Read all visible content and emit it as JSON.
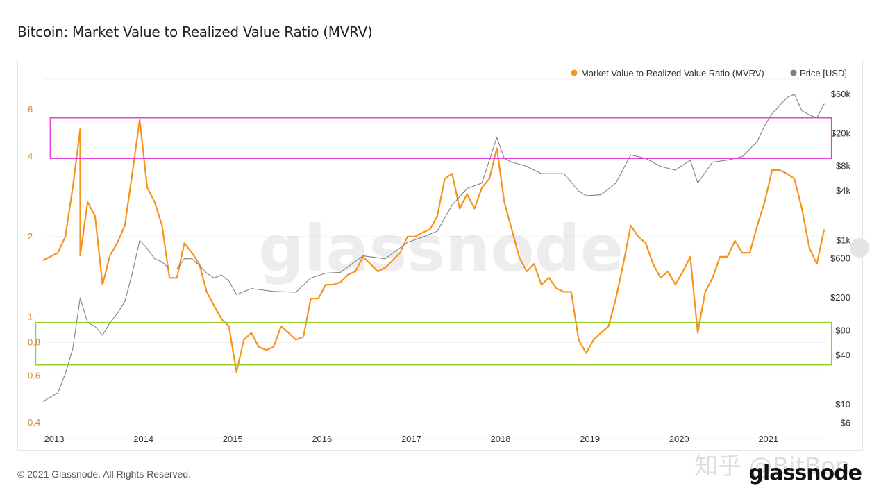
{
  "header": {
    "title": "Bitcoin: Market Value to Realized Value Ratio (MVRV)"
  },
  "footer": {
    "copyright": "© 2021 Glassnode. All Rights Reserved.",
    "logo": "glassnode",
    "watermark": "glassnode",
    "repost_watermark": "知乎 @BitBon"
  },
  "colors": {
    "mvrv": "#f7931a",
    "price": "#808080",
    "top_box": "#e83ee0",
    "bottom_box": "#9acd32"
  },
  "chart_data": {
    "type": "line",
    "title": "Bitcoin: Market Value to Realized Value Ratio (MVRV)",
    "legend": {
      "placement": "top-right",
      "entries": [
        "Market Value to Realized Value Ratio (MVRV)",
        "Price [USD]"
      ]
    },
    "x_ticks": [
      "2013",
      "2014",
      "2015",
      "2016",
      "2017",
      "2018",
      "2019",
      "2020",
      "2021"
    ],
    "y_left": {
      "scale": "log",
      "ticks": [
        "6",
        "4",
        "2",
        "1",
        "0.8",
        "0.6",
        "0.4"
      ],
      "tick_values": [
        6,
        4,
        2,
        1,
        0.8,
        0.6,
        0.4
      ]
    },
    "y_right": {
      "scale": "log",
      "ticks": [
        "$60k",
        "$20k",
        "$8k",
        "$4k",
        "$1k",
        "$600",
        "$200",
        "$80",
        "$40",
        "$10",
        "$6"
      ],
      "tick_values": [
        60000,
        20000,
        8000,
        4000,
        1000,
        600,
        200,
        80,
        40,
        10,
        6
      ]
    },
    "series": [
      {
        "name": "Market Value to Realized Value Ratio (MVRV)",
        "axis": "left",
        "points": [
          [
            "2012-11",
            1.63
          ],
          [
            "2013-01",
            1.74
          ],
          [
            "2013-02",
            2.0
          ],
          [
            "2013-03",
            3.06
          ],
          [
            "2013-04",
            5.07
          ],
          [
            "2013-04",
            1.7
          ],
          [
            "2013-05",
            2.7
          ],
          [
            "2013-06",
            2.39
          ],
          [
            "2013-07",
            1.32
          ],
          [
            "2013-08",
            1.7
          ],
          [
            "2013-09",
            1.9
          ],
          [
            "2013-10",
            2.2
          ],
          [
            "2013-11",
            3.45
          ],
          [
            "2013-12",
            5.5
          ],
          [
            "2014-01",
            3.06
          ],
          [
            "2014-02",
            2.7
          ],
          [
            "2014-03",
            2.2
          ],
          [
            "2014-04",
            1.4
          ],
          [
            "2014-05",
            1.4
          ],
          [
            "2014-06",
            1.89
          ],
          [
            "2014-07",
            1.74
          ],
          [
            "2014-08",
            1.58
          ],
          [
            "2014-09",
            1.24
          ],
          [
            "2014-10",
            1.1
          ],
          [
            "2014-11",
            0.98
          ],
          [
            "2014-12",
            0.92
          ],
          [
            "2015-01",
            0.62
          ],
          [
            "2015-02",
            0.82
          ],
          [
            "2015-03",
            0.87
          ],
          [
            "2015-04",
            0.77
          ],
          [
            "2015-05",
            0.75
          ],
          [
            "2015-06",
            0.77
          ],
          [
            "2015-07",
            0.92
          ],
          [
            "2015-08",
            0.87
          ],
          [
            "2015-09",
            0.82
          ],
          [
            "2015-10",
            0.84
          ],
          [
            "2015-11",
            1.17
          ],
          [
            "2015-12",
            1.17
          ],
          [
            "2016-01",
            1.32
          ],
          [
            "2016-02",
            1.32
          ],
          [
            "2016-03",
            1.35
          ],
          [
            "2016-04",
            1.44
          ],
          [
            "2016-05",
            1.48
          ],
          [
            "2016-06",
            1.68
          ],
          [
            "2016-07",
            1.58
          ],
          [
            "2016-08",
            1.48
          ],
          [
            "2016-09",
            1.53
          ],
          [
            "2016-10",
            1.63
          ],
          [
            "2016-11",
            1.74
          ],
          [
            "2016-12",
            2.0
          ],
          [
            "2017-01",
            2.0
          ],
          [
            "2017-02",
            2.07
          ],
          [
            "2017-03",
            2.13
          ],
          [
            "2017-04",
            2.39
          ],
          [
            "2017-05",
            3.3
          ],
          [
            "2017-06",
            3.45
          ],
          [
            "2017-07",
            2.55
          ],
          [
            "2017-08",
            2.89
          ],
          [
            "2017-09",
            2.55
          ],
          [
            "2017-10",
            3.06
          ],
          [
            "2017-11",
            3.3
          ],
          [
            "2017-12",
            4.3
          ],
          [
            "2018-01",
            2.7
          ],
          [
            "2018-02",
            2.13
          ],
          [
            "2018-03",
            1.68
          ],
          [
            "2018-04",
            1.48
          ],
          [
            "2018-05",
            1.58
          ],
          [
            "2018-06",
            1.32
          ],
          [
            "2018-07",
            1.4
          ],
          [
            "2018-08",
            1.28
          ],
          [
            "2018-09",
            1.24
          ],
          [
            "2018-10",
            1.24
          ],
          [
            "2018-11",
            0.82
          ],
          [
            "2018-12",
            0.73
          ],
          [
            "2019-01",
            0.82
          ],
          [
            "2019-02",
            0.87
          ],
          [
            "2019-03",
            0.92
          ],
          [
            "2019-04",
            1.17
          ],
          [
            "2019-05",
            1.58
          ],
          [
            "2019-06",
            2.2
          ],
          [
            "2019-07",
            2.0
          ],
          [
            "2019-08",
            1.89
          ],
          [
            "2019-09",
            1.58
          ],
          [
            "2019-10",
            1.4
          ],
          [
            "2019-11",
            1.48
          ],
          [
            "2019-12",
            1.32
          ],
          [
            "2020-01",
            1.48
          ],
          [
            "2020-02",
            1.68
          ],
          [
            "2020-03",
            0.87
          ],
          [
            "2020-04",
            1.24
          ],
          [
            "2020-05",
            1.4
          ],
          [
            "2020-06",
            1.68
          ],
          [
            "2020-07",
            1.68
          ],
          [
            "2020-08",
            1.93
          ],
          [
            "2020-09",
            1.74
          ],
          [
            "2020-10",
            1.74
          ],
          [
            "2020-11",
            2.2
          ],
          [
            "2020-12",
            2.7
          ],
          [
            "2021-01",
            3.56
          ],
          [
            "2021-02",
            3.56
          ],
          [
            "2021-03",
            3.45
          ],
          [
            "2021-04",
            3.3
          ],
          [
            "2021-05",
            2.55
          ],
          [
            "2021-06",
            1.82
          ],
          [
            "2021-07",
            1.58
          ],
          [
            "2021-08",
            2.13
          ]
        ]
      },
      {
        "name": "Price [USD]",
        "axis": "right",
        "points": [
          [
            "2012-11",
            11
          ],
          [
            "2013-01",
            14
          ],
          [
            "2013-02",
            24
          ],
          [
            "2013-03",
            48
          ],
          [
            "2013-04",
            200
          ],
          [
            "2013-05",
            100
          ],
          [
            "2013-06",
            90
          ],
          [
            "2013-07",
            70
          ],
          [
            "2013-08",
            100
          ],
          [
            "2013-09",
            130
          ],
          [
            "2013-10",
            180
          ],
          [
            "2013-11",
            400
          ],
          [
            "2013-12",
            1000
          ],
          [
            "2014-01",
            800
          ],
          [
            "2014-02",
            600
          ],
          [
            "2014-03",
            550
          ],
          [
            "2014-04",
            450
          ],
          [
            "2014-05",
            450
          ],
          [
            "2014-06",
            600
          ],
          [
            "2014-07",
            600
          ],
          [
            "2014-08",
            500
          ],
          [
            "2014-09",
            400
          ],
          [
            "2014-10",
            350
          ],
          [
            "2014-11",
            380
          ],
          [
            "2014-12",
            320
          ],
          [
            "2015-01",
            220
          ],
          [
            "2015-03",
            260
          ],
          [
            "2015-06",
            240
          ],
          [
            "2015-09",
            235
          ],
          [
            "2015-11",
            350
          ],
          [
            "2016-01",
            400
          ],
          [
            "2016-03",
            410
          ],
          [
            "2016-06",
            650
          ],
          [
            "2016-09",
            600
          ],
          [
            "2016-12",
            950
          ],
          [
            "2017-02",
            1100
          ],
          [
            "2017-04",
            1300
          ],
          [
            "2017-06",
            2700
          ],
          [
            "2017-08",
            4300
          ],
          [
            "2017-10",
            5000
          ],
          [
            "2017-12",
            18000
          ],
          [
            "2018-01",
            10000
          ],
          [
            "2018-02",
            9000
          ],
          [
            "2018-04",
            8000
          ],
          [
            "2018-06",
            6500
          ],
          [
            "2018-09",
            6500
          ],
          [
            "2018-11",
            4000
          ],
          [
            "2018-12",
            3500
          ],
          [
            "2019-02",
            3600
          ],
          [
            "2019-04",
            5000
          ],
          [
            "2019-06",
            11000
          ],
          [
            "2019-08",
            10000
          ],
          [
            "2019-10",
            8000
          ],
          [
            "2019-12",
            7200
          ],
          [
            "2020-02",
            9500
          ],
          [
            "2020-03",
            5000
          ],
          [
            "2020-05",
            9000
          ],
          [
            "2020-07",
            9500
          ],
          [
            "2020-09",
            10500
          ],
          [
            "2020-11",
            16000
          ],
          [
            "2020-12",
            25000
          ],
          [
            "2021-01",
            35000
          ],
          [
            "2021-03",
            55000
          ],
          [
            "2021-04",
            60000
          ],
          [
            "2021-05",
            38000
          ],
          [
            "2021-06",
            34000
          ],
          [
            "2021-07",
            31000
          ],
          [
            "2021-08",
            46000
          ]
        ]
      }
    ],
    "annotations": [
      {
        "shape": "rectangle",
        "color": "#e83ee0",
        "x_range": [
          "2012-12",
          "2021-09"
        ],
        "mvrv_range": [
          3.94,
          5.6
        ]
      },
      {
        "shape": "rectangle",
        "color": "#9acd32",
        "x_range": [
          "2012-10",
          "2021-09"
        ],
        "mvrv_range": [
          0.66,
          0.95
        ]
      }
    ]
  }
}
